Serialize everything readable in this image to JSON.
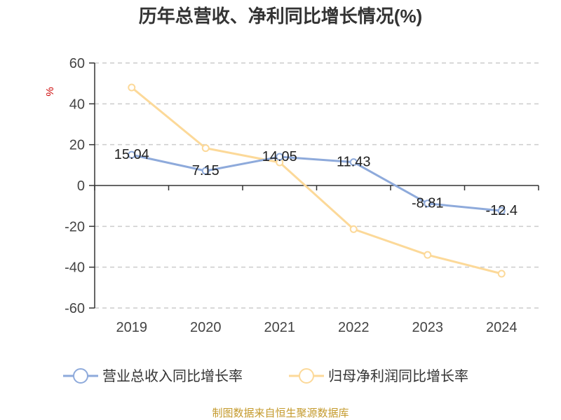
{
  "chart_data": {
    "type": "line",
    "title": "历年总营收、净利同比增长情况(%)",
    "ylabel": "%",
    "xlabel": "",
    "ylim": [
      -60,
      60
    ],
    "yticks": [
      60,
      40,
      20,
      0,
      -20,
      -40,
      -60
    ],
    "grid": true,
    "legend_position": "bottom",
    "categories": [
      "2019",
      "2020",
      "2021",
      "2022",
      "2023",
      "2024"
    ],
    "series": [
      {
        "name": "营业总收入同比增长率",
        "values": [
          15.04,
          7.15,
          14.05,
          11.43,
          -8.81,
          -12.4
        ],
        "color": "#8eaadb",
        "show_labels": true
      },
      {
        "name": "归母净利润同比增长率",
        "values": [
          48.0,
          18.3,
          11.3,
          -21.4,
          -34.0,
          -43.2
        ],
        "color": "#fcd999",
        "show_labels": false
      }
    ]
  },
  "colors": {
    "unit_label": "#cc0000",
    "source": "#c49a2c",
    "axis": "#333333",
    "grid": "#cccccc"
  },
  "source_text": "制图数据来自恒生聚源数据库"
}
